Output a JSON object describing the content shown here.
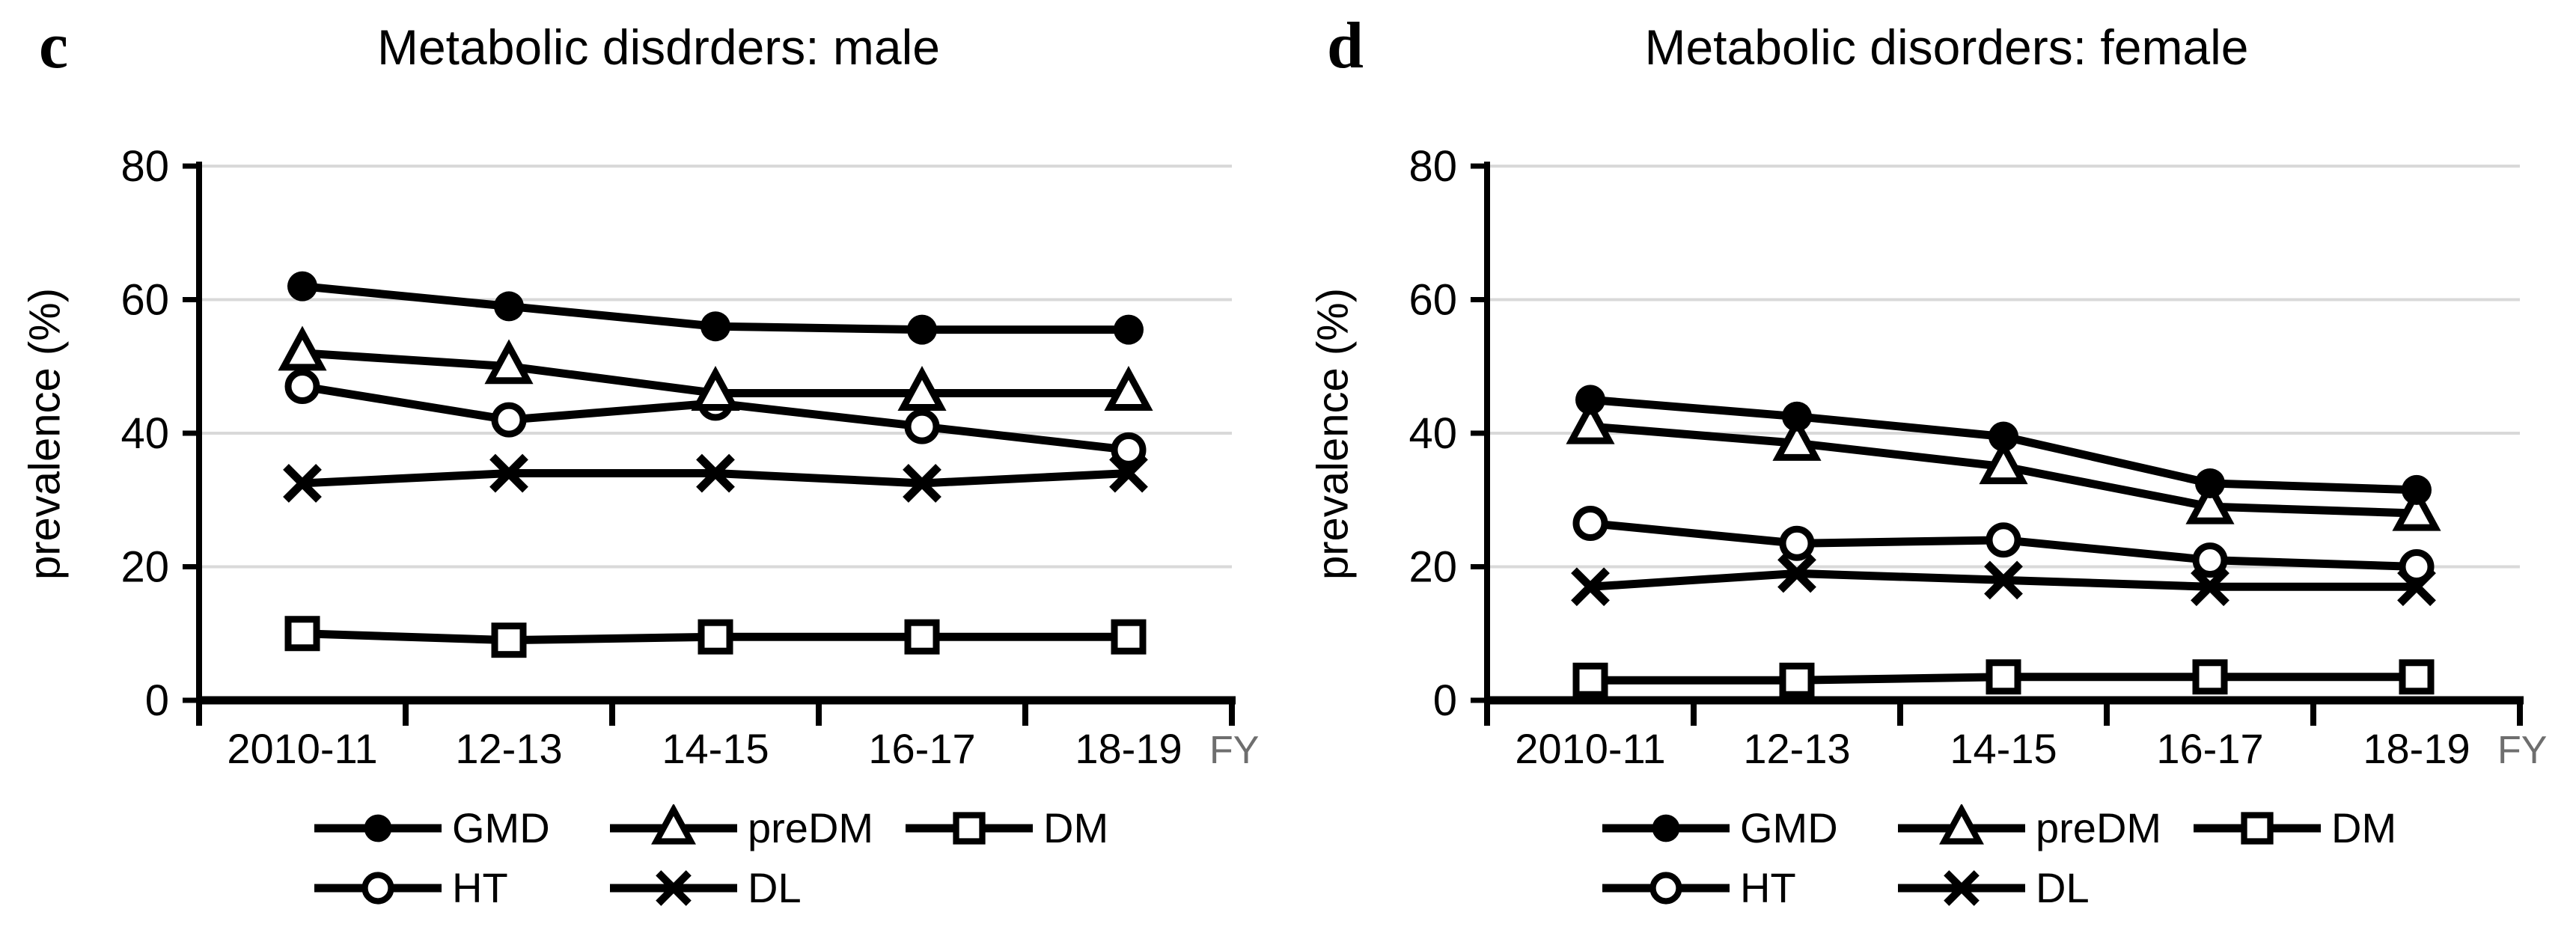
{
  "figure": {
    "background": "#ffffff",
    "text_color": "#000000",
    "grid_color": "#d9d9d9",
    "axis_color": "#000000",
    "series_color": "#000000",
    "fy_label_color": "#6e6e6e"
  },
  "chart_data": [
    {
      "type": "line",
      "panel_label": "c",
      "title": "Metabolic disdrders: male",
      "ylabel": "prevalence (%)",
      "x_unit_label": "FY",
      "categories": [
        "2010-11",
        "12-13",
        "14-15",
        "16-17",
        "18-19"
      ],
      "ylim": [
        0,
        80
      ],
      "yticks": [
        0,
        20,
        40,
        60,
        80
      ],
      "grid": "horizontal",
      "legend_position": "bottom",
      "series": [
        {
          "name": "GMD",
          "marker": "filled-circle",
          "values": [
            62,
            59,
            56,
            55.5,
            55.5
          ]
        },
        {
          "name": "preDM",
          "marker": "open-triangle",
          "values": [
            52,
            50,
            46,
            46,
            46
          ]
        },
        {
          "name": "DM",
          "marker": "open-square",
          "values": [
            10,
            9,
            9.5,
            9.5,
            9.5
          ]
        },
        {
          "name": "HT",
          "marker": "open-circle",
          "values": [
            47,
            42,
            44.5,
            41,
            37.5
          ]
        },
        {
          "name": "DL",
          "marker": "x-cross",
          "values": [
            32.5,
            34,
            34,
            32.5,
            34
          ]
        }
      ]
    },
    {
      "type": "line",
      "panel_label": "d",
      "title": "Metabolic disorders: female",
      "ylabel": "prevalence (%)",
      "x_unit_label": "FY",
      "categories": [
        "2010-11",
        "12-13",
        "14-15",
        "16-17",
        "18-19"
      ],
      "ylim": [
        0,
        80
      ],
      "yticks": [
        0,
        20,
        40,
        60,
        80
      ],
      "grid": "horizontal",
      "legend_position": "bottom",
      "series": [
        {
          "name": "GMD",
          "marker": "filled-circle",
          "values": [
            45,
            42.5,
            39.5,
            32.5,
            31.5
          ]
        },
        {
          "name": "preDM",
          "marker": "open-triangle",
          "values": [
            41,
            38.5,
            35,
            29,
            28
          ]
        },
        {
          "name": "DM",
          "marker": "open-square",
          "values": [
            3,
            3,
            3.5,
            3.5,
            3.5
          ]
        },
        {
          "name": "HT",
          "marker": "open-circle",
          "values": [
            26.5,
            23.5,
            24,
            21,
            20
          ]
        },
        {
          "name": "DL",
          "marker": "x-cross",
          "values": [
            17,
            19,
            18,
            17,
            17
          ]
        }
      ]
    }
  ]
}
